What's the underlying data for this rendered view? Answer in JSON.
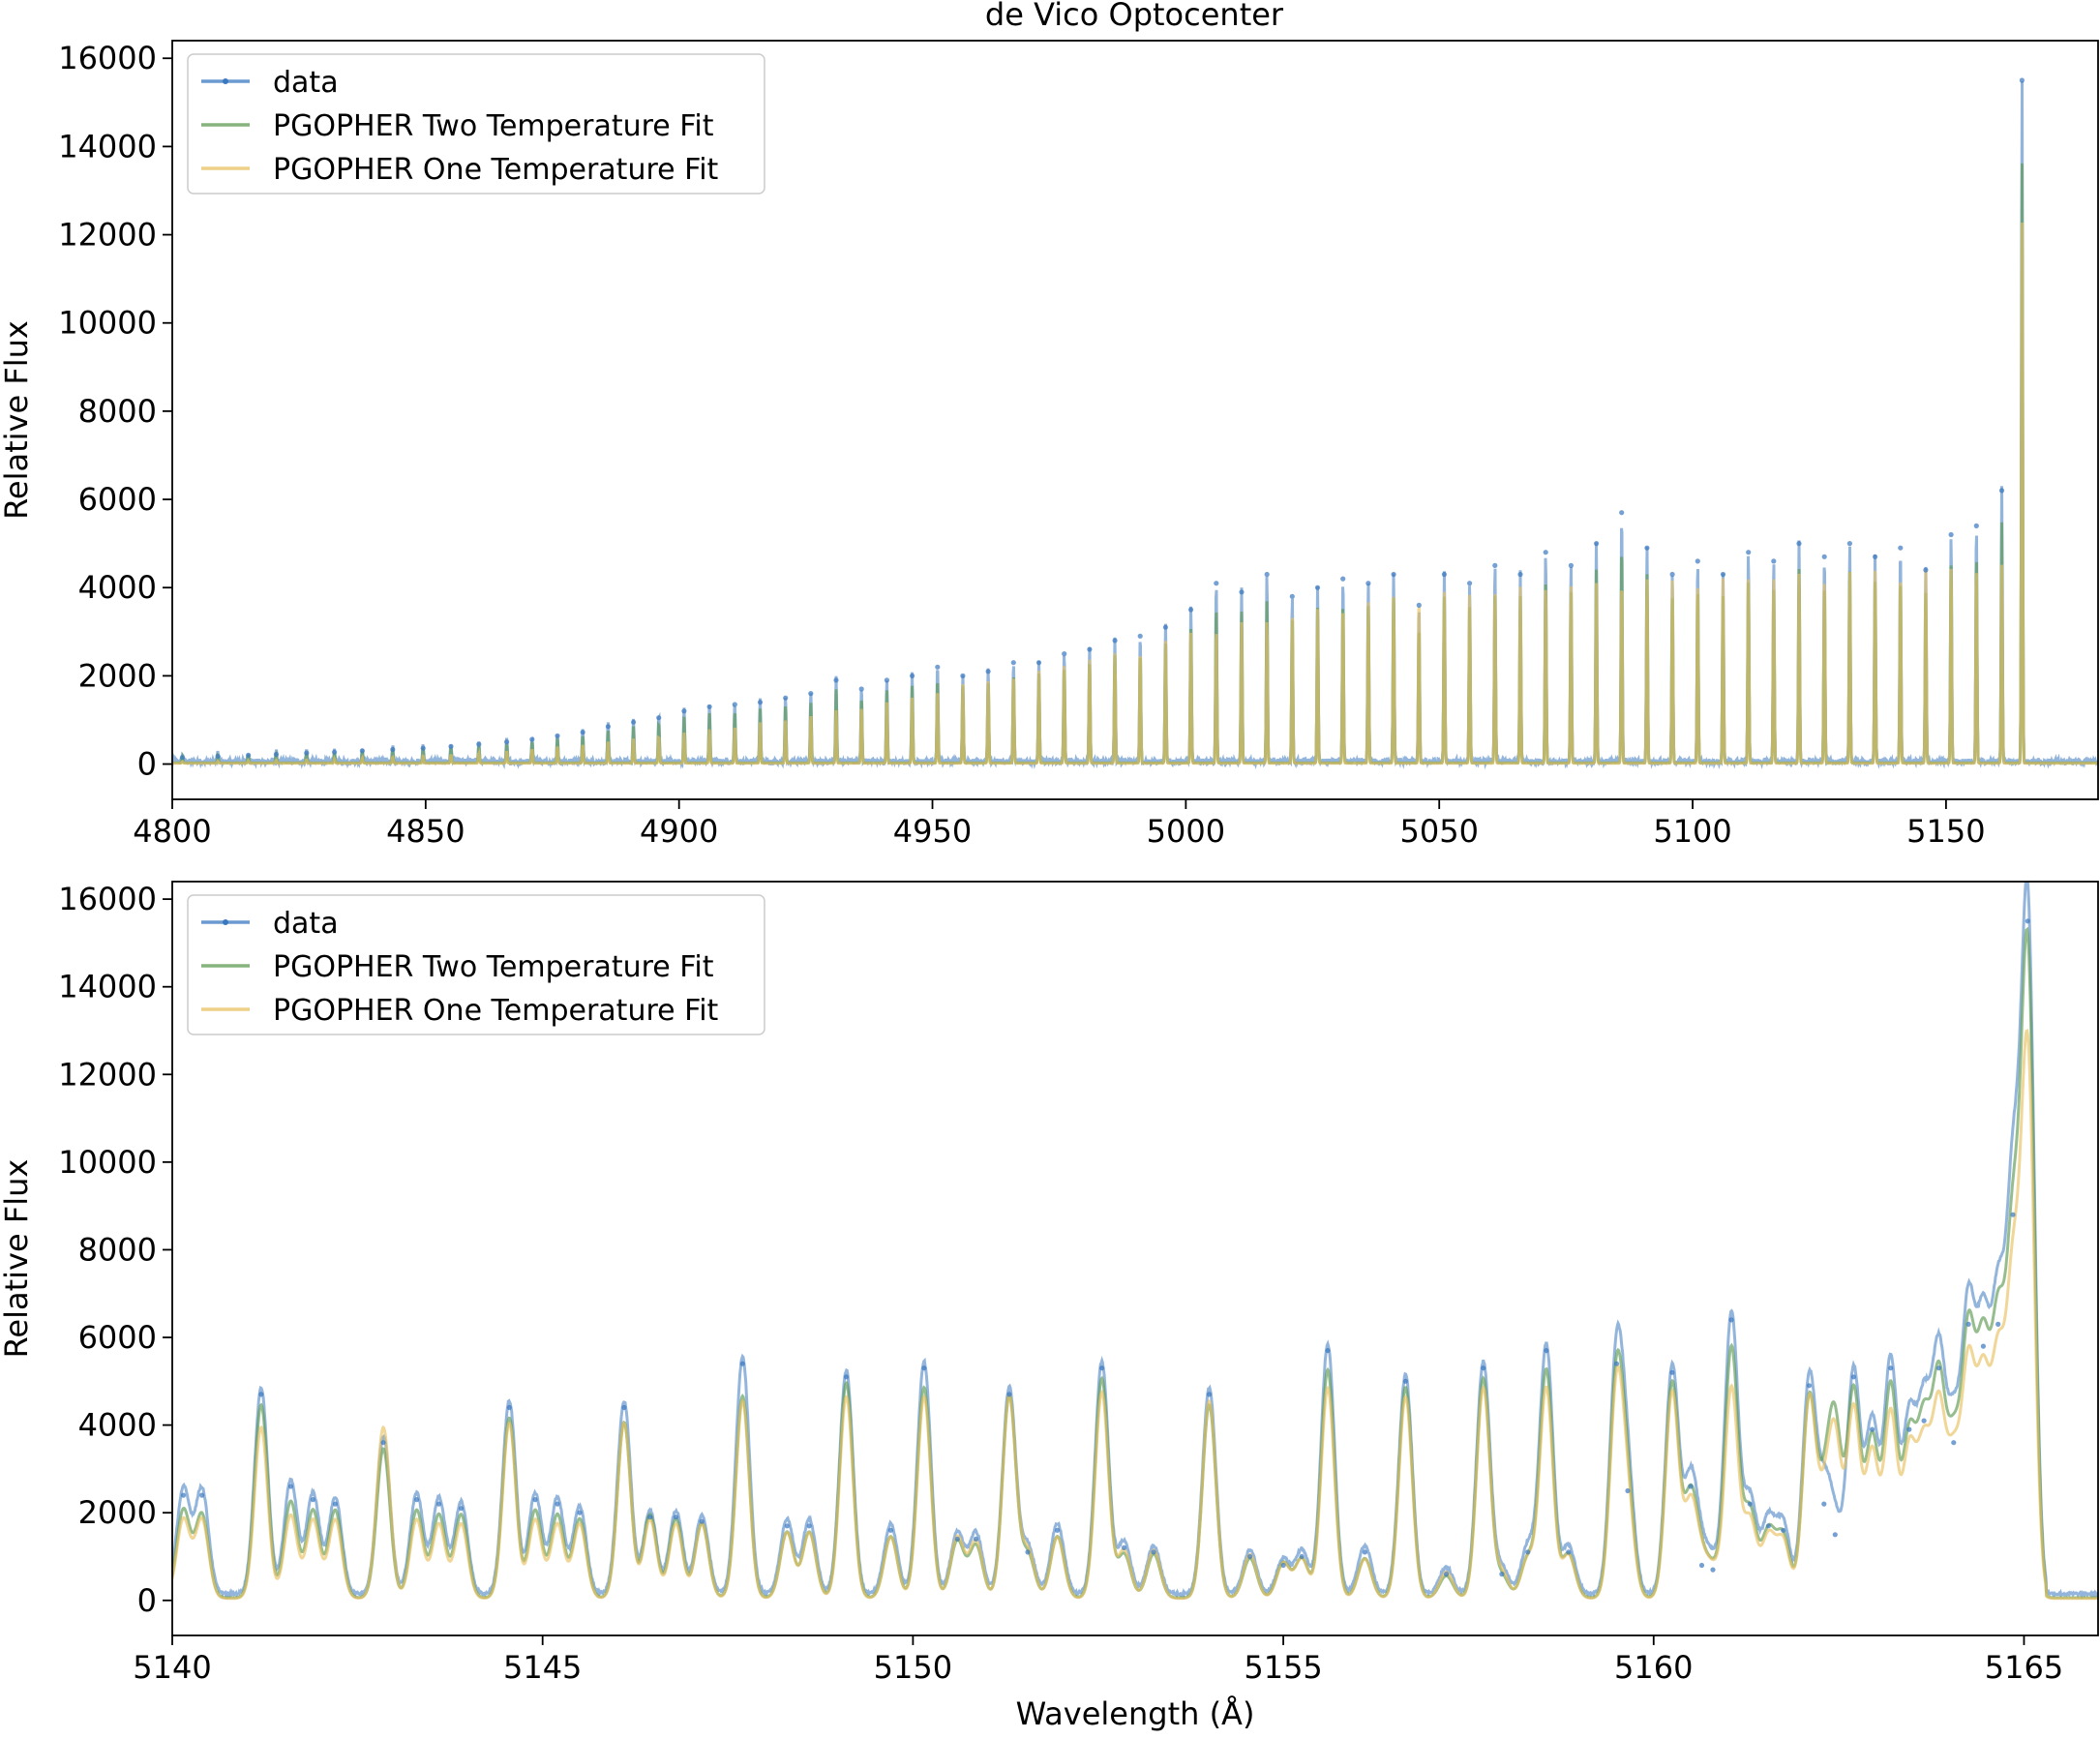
{
  "figure": {
    "title": "de Vico Optocenter"
  },
  "colors": {
    "data": "#3a78c0",
    "two_temp": "#5e9a52",
    "one_temp": "#e8c060"
  },
  "chart_data": [
    {
      "type": "line",
      "title": "de Vico Optocenter",
      "xlabel": "",
      "ylabel": "Relative Flux",
      "xlim": [
        4800,
        5180
      ],
      "ylim": [
        -800,
        16400
      ],
      "xticks": [
        4800,
        4850,
        4900,
        4950,
        5000,
        5050,
        5100,
        5150
      ],
      "yticks": [
        0,
        2000,
        4000,
        6000,
        8000,
        10000,
        12000,
        14000,
        16000
      ],
      "legend": "top-left",
      "grid": false,
      "series": [
        {
          "name": "data",
          "marker": "dot"
        },
        {
          "name": "PGOPHER Two Temperature Fit"
        },
        {
          "name": "PGOPHER One Temperature Fit"
        }
      ],
      "x": [
        4802.0,
        4809.0,
        4815.0,
        4820.5,
        4826.5,
        4832.0,
        4837.5,
        4843.5,
        4849.5,
        4855.0,
        4860.5,
        4866.0,
        4871.0,
        4876.0,
        4881.0,
        4886.0,
        4891.0,
        4896.0,
        4901.0,
        4906.0,
        4911.0,
        4916.0,
        4921.0,
        4926.0,
        4931.0,
        4936.0,
        4941.0,
        4946.0,
        4951.0,
        4956.0,
        4961.0,
        4966.0,
        4971.0,
        4976.0,
        4981.0,
        4986.0,
        4991.0,
        4996.0,
        5001.0,
        5006.0,
        5011.0,
        5016.0,
        5021.0,
        5026.0,
        5031.0,
        5036.0,
        5041.0,
        5046.0,
        5051.0,
        5056.0,
        5061.0,
        5066.0,
        5071.0,
        5076.0,
        5081.0,
        5086.0,
        5091.0,
        5096.0,
        5101.0,
        5106.0,
        5111.0,
        5116.0,
        5121.0,
        5126.0,
        5131.0,
        5136.0,
        5141.0,
        5146.0,
        5151.0,
        5156.0,
        5161.0,
        5165.0
      ],
      "peak_values": [
        150,
        180,
        200,
        220,
        250,
        270,
        300,
        330,
        360,
        400,
        450,
        500,
        560,
        640,
        720,
        850,
        950,
        1050,
        1200,
        1300,
        1350,
        1400,
        1500,
        1600,
        1900,
        1700,
        1900,
        2000,
        2200,
        2000,
        2100,
        2300,
        2300,
        2500,
        2600,
        2800,
        2900,
        3100,
        3500,
        4100,
        3900,
        4300,
        3800,
        4000,
        4200,
        4100,
        4300,
        3600,
        4300,
        4100,
        4500,
        4300,
        4800,
        4500,
        5000,
        5700,
        4900,
        4300,
        4600,
        4300,
        4800,
        4600,
        5000,
        4700,
        5000,
        4700,
        4900,
        4400,
        5200,
        5400,
        6200,
        15500
      ],
      "one_temp_peaks": [
        40,
        50,
        60,
        70,
        80,
        100,
        120,
        140,
        170,
        200,
        240,
        280,
        330,
        380,
        430,
        500,
        560,
        620,
        700,
        780,
        850,
        930,
        1000,
        1100,
        1200,
        1300,
        1400,
        1500,
        1700,
        1800,
        1900,
        2000,
        2100,
        2300,
        2400,
        2500,
        2600,
        2800,
        3000,
        3100,
        3200,
        3300,
        3400,
        3500,
        3600,
        3700,
        3800,
        3800,
        3900,
        3900,
        4000,
        4000,
        4100,
        4100,
        4100,
        4200,
        4200,
        4200,
        4200,
        4200,
        4300,
        4300,
        4300,
        4300,
        4400,
        4400,
        4400,
        4400,
        4500,
        4500,
        4500,
        12300
      ]
    },
    {
      "type": "line",
      "title": "",
      "xlabel": "Wavelength (Å)",
      "ylabel": "Relative Flux",
      "xlim": [
        5140,
        5166
      ],
      "ylim": [
        -800,
        16400
      ],
      "xticks": [
        5140,
        5145,
        5150,
        5155,
        5160,
        5165
      ],
      "yticks": [
        0,
        2000,
        4000,
        6000,
        8000,
        10000,
        12000,
        14000,
        16000
      ],
      "legend": "top-left",
      "grid": false,
      "series": [
        {
          "name": "data",
          "marker": "dot"
        },
        {
          "name": "PGOPHER Two Temperature Fit"
        },
        {
          "name": "PGOPHER One Temperature Fit"
        }
      ],
      "x": [
        5140.15,
        5140.4,
        5141.2,
        5141.6,
        5141.9,
        5142.2,
        5142.85,
        5143.3,
        5143.6,
        5143.9,
        5144.55,
        5144.9,
        5145.2,
        5145.5,
        5146.1,
        5146.45,
        5146.8,
        5147.15,
        5147.7,
        5148.3,
        5148.6,
        5149.1,
        5149.7,
        5150.15,
        5150.6,
        5150.85,
        5151.3,
        5151.55,
        5151.95,
        5152.55,
        5152.85,
        5153.25,
        5154.0,
        5154.55,
        5155.0,
        5155.25,
        5155.6,
        5156.1,
        5156.65,
        5157.2,
        5157.7,
        5157.95,
        5158.3,
        5158.55,
        5158.85,
        5159.5,
        5159.65,
        5160.25,
        5160.5,
        5160.65,
        5160.8,
        5161.05,
        5161.3,
        5161.55,
        5161.75,
        5162.1,
        5162.3,
        5162.45,
        5162.7,
        5162.95,
        5163.2,
        5163.45,
        5163.65,
        5163.85,
        5164.05,
        5164.25,
        5164.45,
        5164.65,
        5164.85,
        5165.05
      ],
      "peak_values": [
        2400,
        2400,
        4700,
        2600,
        2300,
        2200,
        3600,
        2300,
        2200,
        2100,
        4400,
        2300,
        2200,
        2000,
        4400,
        1900,
        1900,
        1800,
        5400,
        1700,
        1700,
        5100,
        1600,
        5300,
        1400,
        1400,
        4700,
        1100,
        1600,
        5300,
        1200,
        1100,
        4700,
        1000,
        800,
        1000,
        5700,
        1100,
        5000,
        600,
        5300,
        600,
        1100,
        5700,
        1100,
        5400,
        2500,
        5200,
        2600,
        800,
        700,
        6400,
        2200,
        1700,
        1600,
        4900,
        2200,
        1500,
        5100,
        3900,
        5300,
        3900,
        4100,
        5300,
        3600,
        6300,
        5800,
        6300,
        8800,
        15500
      ],
      "two_temp_peaks": [
        2000,
        1900,
        4400,
        2200,
        2000,
        2000,
        3400,
        2000,
        1900,
        1900,
        4100,
        2000,
        1900,
        1800,
        4000,
        1900,
        1800,
        1700,
        4600,
        1500,
        1500,
        4900,
        1400,
        4800,
        1300,
        1200,
        4600,
        1000,
        1400,
        5000,
        1000,
        1000,
        4400,
        900,
        800,
        900,
        5200,
        900,
        4800,
        500,
        5000,
        500,
        900,
        5200,
        1000,
        5000,
        2200,
        4900,
        2300,
        700,
        600,
        5700,
        2000,
        1500,
        1400,
        4500,
        2000,
        3800,
        4700,
        3600,
        4800,
        3600,
        3800,
        4800,
        3300,
        5800,
        5400,
        5900,
        7800,
        14500
      ],
      "one_temp_peaks": [
        1800,
        1800,
        3900,
        1900,
        1800,
        1800,
        3900,
        1800,
        1700,
        1700,
        4000,
        1800,
        1700,
        1700,
        4000,
        1800,
        1700,
        1700,
        4500,
        1500,
        1500,
        4600,
        1400,
        4600,
        1400,
        1300,
        4600,
        1100,
        1400,
        4700,
        1100,
        1100,
        4500,
        1000,
        800,
        900,
        4800,
        900,
        4600,
        600,
        4800,
        600,
        900,
        4800,
        1000,
        4700,
        2000,
        4700,
        2100,
        700,
        600,
        4800,
        1800,
        1400,
        1300,
        4500,
        1800,
        3500,
        4300,
        3300,
        4200,
        3300,
        3300,
        4200,
        3000,
        5100,
        4700,
        5100,
        6800,
        12300
      ]
    }
  ]
}
